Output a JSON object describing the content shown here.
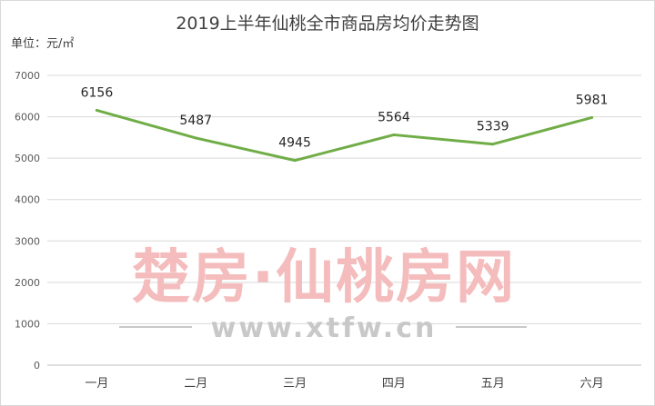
{
  "chart_data": {
    "type": "line",
    "title": "2019上半年仙桃全市商品房均价走势图",
    "ylabel": "单位：元/㎡",
    "xlabel": "",
    "categories": [
      "一月",
      "二月",
      "三月",
      "四月",
      "五月",
      "六月"
    ],
    "series": [
      {
        "values": [
          6156,
          5487,
          4945,
          5564,
          5339,
          5981
        ],
        "color": "#70ad47"
      }
    ],
    "ylim": [
      0,
      7000
    ],
    "yticks": [
      0,
      1000,
      2000,
      3000,
      4000,
      5000,
      6000,
      7000
    ],
    "grid": true,
    "legend": "none"
  },
  "watermark": {
    "text": "楚房·仙桃房网",
    "url": "www.xtfw.cn"
  }
}
